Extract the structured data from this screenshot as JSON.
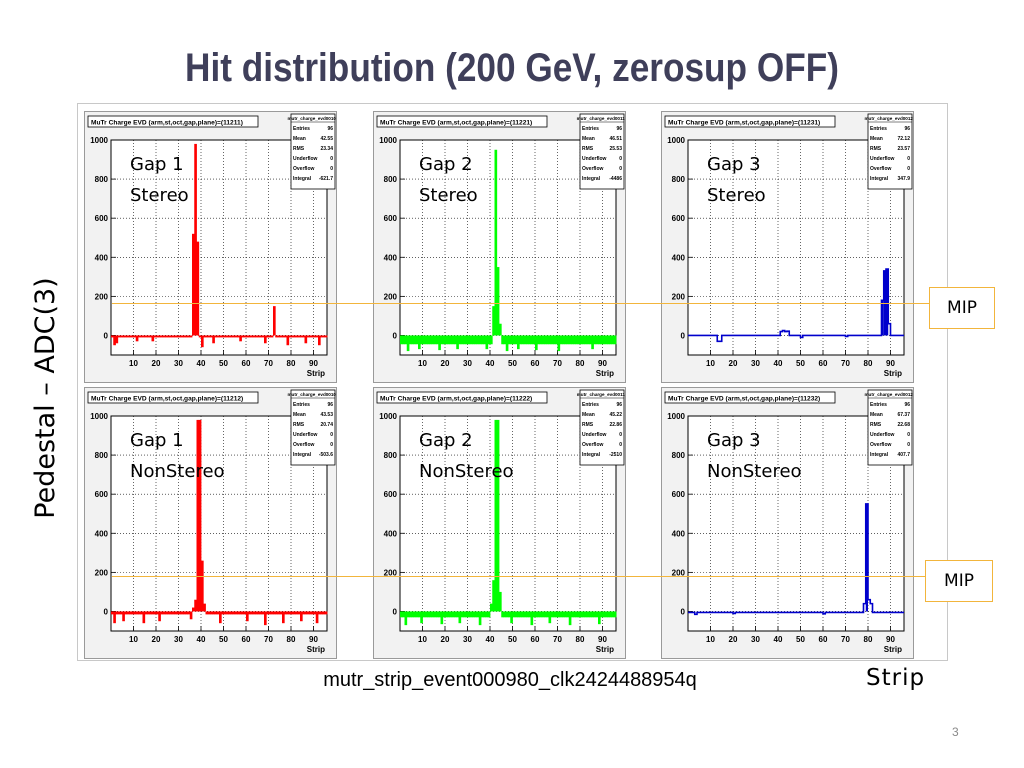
{
  "title": "Hit distribution (200 GeV, zerosup OFF)",
  "ylabel": "Pedestal – ADC(3)",
  "xlabel": "Strip",
  "footer": "mutr_strip_event000980_clk2424488954q",
  "page_number": "3",
  "mip_label": "MIP",
  "colors": {
    "title": "#3f3f5a",
    "gap1": "#ff0000",
    "gap2": "#00ff00",
    "gap3": "#0000cc",
    "mip": "#f2b53c"
  },
  "chart_data": [
    {
      "type": "bar",
      "hist_title": "MuTr Charge EVD (arm,st,oct,gap,plane)=(11211)",
      "stats_name": "mutr_charge_evd00100",
      "stats": [
        [
          "Entries",
          "96"
        ],
        [
          "Mean",
          "42.55"
        ],
        [
          "RMS",
          "23.34"
        ],
        [
          "Underflow",
          "0"
        ],
        [
          "Overflow",
          "0"
        ],
        [
          "Integral",
          "-621.7"
        ]
      ],
      "overlay": [
        "Gap 1",
        "Stereo"
      ],
      "xlabel": "Strip",
      "xlim": [
        0,
        96
      ],
      "ylim": [
        -100,
        1000
      ],
      "xticks": [
        10,
        20,
        30,
        40,
        50,
        60,
        70,
        80,
        90
      ],
      "yticks": [
        0,
        200,
        400,
        600,
        800,
        1000
      ],
      "ytick_labels": [
        "0",
        "200",
        "400",
        "600",
        "800",
        "1000"
      ],
      "color": "#ff0000",
      "baseline": -10,
      "mode": "fill",
      "peaks": [
        [
          36,
          520
        ],
        [
          37,
          980
        ],
        [
          38,
          480
        ],
        [
          72,
          150
        ]
      ],
      "dips": [
        [
          1,
          -50
        ],
        [
          2,
          -40
        ],
        [
          11,
          -30
        ],
        [
          18,
          -30
        ],
        [
          40,
          -60
        ],
        [
          45,
          -40
        ],
        [
          57,
          -30
        ],
        [
          68,
          -40
        ],
        [
          78,
          -50
        ],
        [
          86,
          -40
        ],
        [
          92,
          -50
        ]
      ],
      "mip": true
    },
    {
      "type": "bar",
      "hist_title": "MuTr Charge EVD (arm,st,oct,gap,plane)=(11221)",
      "stats_name": "mutr_charge_evd00110",
      "stats": [
        [
          "Entries",
          "96"
        ],
        [
          "Mean",
          "46.51"
        ],
        [
          "RMS",
          "25.53"
        ],
        [
          "Underflow",
          "0"
        ],
        [
          "Overflow",
          "0"
        ],
        [
          "Integral",
          "-4486"
        ]
      ],
      "overlay": [
        "Gap 2",
        "Stereo"
      ],
      "xlabel": "Strip",
      "xlim": [
        0,
        96
      ],
      "ylim": [
        -100,
        1000
      ],
      "xticks": [
        10,
        20,
        30,
        40,
        50,
        60,
        70,
        80,
        90
      ],
      "yticks": [
        0,
        200,
        400,
        600,
        800,
        1000
      ],
      "ytick_labels": [
        "0",
        "200",
        "400",
        "600",
        "800",
        "1000"
      ],
      "color": "#00ff00",
      "baseline": -45,
      "mode": "fill",
      "peaks": [
        [
          41,
          150
        ],
        [
          42,
          950
        ],
        [
          43,
          350
        ],
        [
          44,
          60
        ]
      ],
      "dips": [
        [
          3,
          -80
        ],
        [
          8,
          -70
        ],
        [
          17,
          -75
        ],
        [
          25,
          -70
        ],
        [
          38,
          -70
        ],
        [
          47,
          -80
        ],
        [
          52,
          -70
        ],
        [
          60,
          -75
        ],
        [
          70,
          -80
        ],
        [
          85,
          -70
        ]
      ],
      "mip": true
    },
    {
      "type": "line",
      "hist_title": "MuTr Charge EVD (arm,st,oct,gap,plane)=(11231)",
      "stats_name": "mutr_charge_evd00120",
      "stats": [
        [
          "Entries",
          "96"
        ],
        [
          "Mean",
          "72.12"
        ],
        [
          "RMS",
          "23.57"
        ],
        [
          "Underflow",
          "0"
        ],
        [
          "Overflow",
          "0"
        ],
        [
          "Integral",
          "347.9"
        ]
      ],
      "overlay": [
        "Gap 3",
        "Stereo"
      ],
      "xlabel": "Strip",
      "xlim": [
        0,
        96
      ],
      "ylim": [
        -100,
        1000
      ],
      "xticks": [
        10,
        20,
        30,
        40,
        50,
        60,
        70,
        80,
        90
      ],
      "yticks": [
        0,
        200,
        400,
        600,
        800,
        1000
      ],
      "ytick_labels": [
        "0",
        "200",
        "400",
        "600",
        "800",
        "1000"
      ],
      "color": "#0000cc",
      "baseline": 0,
      "mode": "line",
      "peaks": [
        [
          41,
          20
        ],
        [
          42,
          25
        ],
        [
          43,
          20
        ],
        [
          44,
          22
        ],
        [
          86,
          180
        ],
        [
          87,
          330
        ],
        [
          88,
          340
        ],
        [
          89,
          60
        ]
      ],
      "dips": [
        [
          13,
          -30
        ],
        [
          14,
          -30
        ],
        [
          50,
          -10
        ],
        [
          70,
          -5
        ]
      ],
      "mip": true
    },
    {
      "type": "bar",
      "hist_title": "MuTr Charge EVD (arm,st,oct,gap,plane)=(11212)",
      "stats_name": "mutr_charge_evd00101",
      "stats": [
        [
          "Entries",
          "96"
        ],
        [
          "Mean",
          "43.53"
        ],
        [
          "RMS",
          "20.74"
        ],
        [
          "Underflow",
          "0"
        ],
        [
          "Overflow",
          "0"
        ],
        [
          "Integral",
          "-503.6"
        ]
      ],
      "overlay": [
        "Gap 1",
        "NonStereo"
      ],
      "xlabel": "Strip",
      "xlim": [
        0,
        96
      ],
      "ylim": [
        -100,
        1000
      ],
      "xticks": [
        10,
        20,
        30,
        40,
        50,
        60,
        70,
        80,
        90
      ],
      "yticks": [
        0,
        200,
        400,
        600,
        800,
        1000
      ],
      "ytick_labels": [
        "0",
        "200",
        "400",
        "600",
        "800",
        "1000"
      ],
      "color": "#ff0000",
      "baseline": -15,
      "mode": "fill",
      "peaks": [
        [
          36,
          20
        ],
        [
          37,
          60
        ],
        [
          38,
          980
        ],
        [
          39,
          980
        ],
        [
          40,
          260
        ],
        [
          41,
          40
        ]
      ],
      "dips": [
        [
          1,
          -60
        ],
        [
          5,
          -50
        ],
        [
          14,
          -60
        ],
        [
          21,
          -50
        ],
        [
          35,
          -40
        ],
        [
          48,
          -60
        ],
        [
          60,
          -50
        ],
        [
          68,
          -70
        ],
        [
          76,
          -60
        ],
        [
          84,
          -50
        ],
        [
          91,
          -60
        ]
      ],
      "mip": false
    },
    {
      "type": "bar",
      "hist_title": "MuTr Charge EVD (arm,st,oct,gap,plane)=(11222)",
      "stats_name": "mutr_charge_evd00111",
      "stats": [
        [
          "Entries",
          "96"
        ],
        [
          "Mean",
          "45.22"
        ],
        [
          "RMS",
          "22.86"
        ],
        [
          "Underflow",
          "0"
        ],
        [
          "Overflow",
          "0"
        ],
        [
          "Integral",
          "-2510"
        ]
      ],
      "overlay": [
        "Gap 2",
        "NonStereo"
      ],
      "xlabel": "Strip",
      "xlim": [
        0,
        96
      ],
      "ylim": [
        -100,
        1000
      ],
      "xticks": [
        10,
        20,
        30,
        40,
        50,
        60,
        70,
        80,
        90
      ],
      "yticks": [
        0,
        200,
        400,
        600,
        800,
        1000
      ],
      "ytick_labels": [
        "0",
        "200",
        "400",
        "600",
        "800",
        "1000"
      ],
      "color": "#00ff00",
      "baseline": -30,
      "mode": "fill",
      "peaks": [
        [
          40,
          40
        ],
        [
          41,
          160
        ],
        [
          42,
          980
        ],
        [
          43,
          980
        ],
        [
          44,
          100
        ]
      ],
      "dips": [
        [
          2,
          -70
        ],
        [
          9,
          -60
        ],
        [
          18,
          -65
        ],
        [
          26,
          -60
        ],
        [
          35,
          -70
        ],
        [
          49,
          -60
        ],
        [
          58,
          -70
        ],
        [
          66,
          -60
        ],
        [
          75,
          -70
        ],
        [
          88,
          -65
        ]
      ],
      "mip": false
    },
    {
      "type": "line",
      "hist_title": "MuTr Charge EVD (arm,st,oct,gap,plane)=(11232)",
      "stats_name": "mutr_charge_evd00121",
      "stats": [
        [
          "Entries",
          "96"
        ],
        [
          "Mean",
          "67.37"
        ],
        [
          "RMS",
          "22.68"
        ],
        [
          "Underflow",
          "0"
        ],
        [
          "Overflow",
          "0"
        ],
        [
          "Integral",
          "407.7"
        ]
      ],
      "overlay": [
        "Gap 3",
        "NonStereo"
      ],
      "xlabel": "Strip",
      "xlim": [
        0,
        96
      ],
      "ylim": [
        -100,
        1000
      ],
      "xticks": [
        10,
        20,
        30,
        40,
        50,
        60,
        70,
        80,
        90
      ],
      "yticks": [
        0,
        200,
        400,
        600,
        800,
        1000
      ],
      "ytick_labels": [
        "0",
        "200",
        "400",
        "600",
        "800",
        "1000"
      ],
      "color": "#0000cc",
      "baseline": -5,
      "mode": "line",
      "peaks": [
        [
          78,
          40
        ],
        [
          79,
          550
        ],
        [
          80,
          60
        ],
        [
          81,
          40
        ]
      ],
      "dips": [
        [
          3,
          -15
        ],
        [
          20,
          -10
        ],
        [
          60,
          -12
        ]
      ],
      "mip": true
    }
  ]
}
